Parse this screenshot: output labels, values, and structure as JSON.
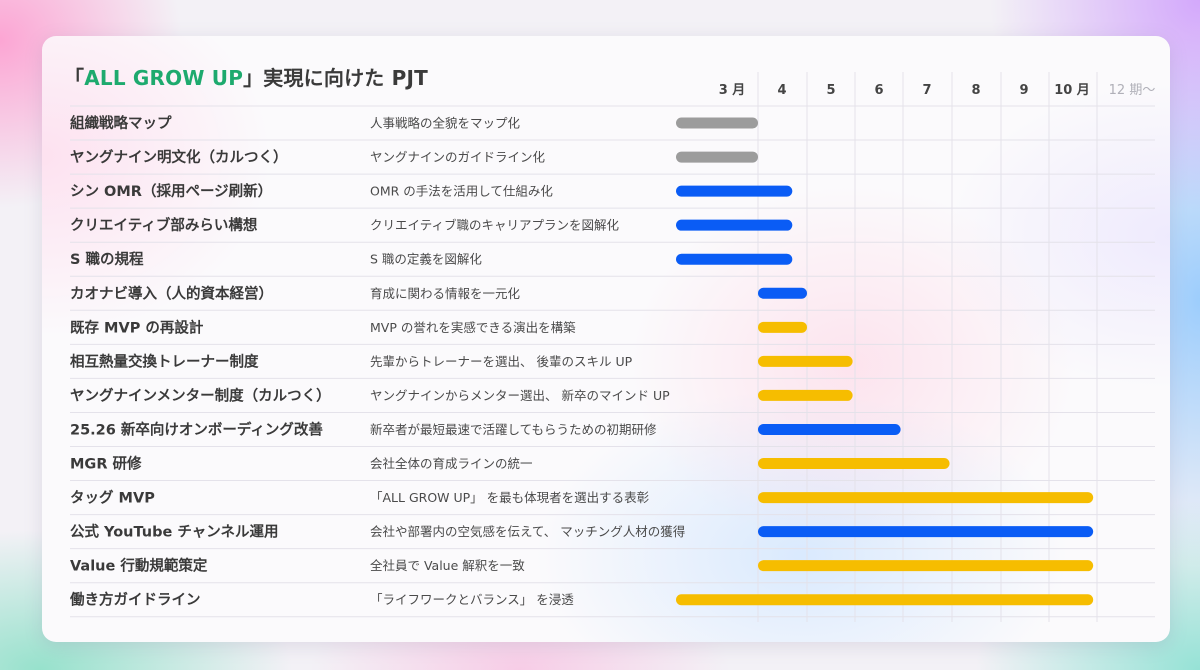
{
  "slide": {
    "title_open": "「",
    "title_accent": "ALL GROW UP",
    "title_rest": "」実現に向けた PJT"
  },
  "chart_data": {
    "type": "gantt",
    "columns": [
      "3 月",
      "4",
      "5",
      "6",
      "7",
      "8",
      "9",
      "10 月",
      "12 期〜"
    ],
    "colors": {
      "gray": "#9c9c9c",
      "blue": "#0a5cf5",
      "yellow": "#f6bd00"
    },
    "rows": [
      {
        "name": "組織戦略マップ",
        "desc": "人事戦略の全貌をマップ化",
        "start": 0,
        "end": 1.0,
        "color": "gray"
      },
      {
        "name": "ヤングナイン明文化（カルつく）",
        "desc": "ヤングナインのガイドライン化",
        "start": 0,
        "end": 1.0,
        "color": "gray"
      },
      {
        "name": "シン OMR（採用ページ刷新）",
        "desc": "OMR の手法を活用して仕組み化",
        "start": 0,
        "end": 1.7,
        "color": "blue"
      },
      {
        "name": "クリエイティブ部みらい構想",
        "desc": "クリエイティブ職のキャリアプランを図解化",
        "start": 0,
        "end": 1.7,
        "color": "blue"
      },
      {
        "name": "S 職の規程",
        "desc": "S 職の定義を図解化",
        "start": 0,
        "end": 1.7,
        "color": "blue"
      },
      {
        "name": "カオナビ導入（人的資本経営）",
        "desc": "育成に関わる情報を一元化",
        "start": 1.0,
        "end": 2.0,
        "color": "blue"
      },
      {
        "name": "既存 MVP の再設計",
        "desc": "MVP の誉れを実感できる演出を構築",
        "start": 1.0,
        "end": 2.0,
        "color": "yellow"
      },
      {
        "name": "相互熱量交換トレーナー制度",
        "desc": "先輩からトレーナーを選出、 後輩のスキル UP",
        "start": 1.0,
        "end": 2.95,
        "color": "yellow"
      },
      {
        "name": "ヤングナインメンター制度（カルつく）",
        "desc": "ヤングナインからメンター選出、 新卒のマインド UP",
        "start": 1.0,
        "end": 2.95,
        "color": "yellow"
      },
      {
        "name": "25.26 新卒向けオンボーディング改善",
        "desc": "新卒者が最短最速で活躍してもらうための初期研修",
        "start": 1.0,
        "end": 3.95,
        "color": "blue"
      },
      {
        "name": "MGR 研修",
        "desc": "会社全体の育成ラインの統一",
        "start": 1.0,
        "end": 4.95,
        "color": "yellow"
      },
      {
        "name": "タッグ MVP",
        "desc": "「ALL GROW UP」 を最も体現者を選出する表彰",
        "start": 1.0,
        "end": 7.92,
        "color": "yellow"
      },
      {
        "name": "公式 YouTube チャンネル運用",
        "desc": "会社や部署内の空気感を伝えて、 マッチング人材の獲得",
        "start": 1.0,
        "end": 7.92,
        "color": "blue"
      },
      {
        "name": "Value 行動規範策定",
        "desc": "全社員で Value 解釈を一致",
        "start": 1.0,
        "end": 7.92,
        "color": "yellow"
      },
      {
        "name": "働き方ガイドライン",
        "desc": "「ライフワークとバランス」 を浸透",
        "start": 0,
        "end": 7.92,
        "color": "yellow"
      }
    ]
  }
}
